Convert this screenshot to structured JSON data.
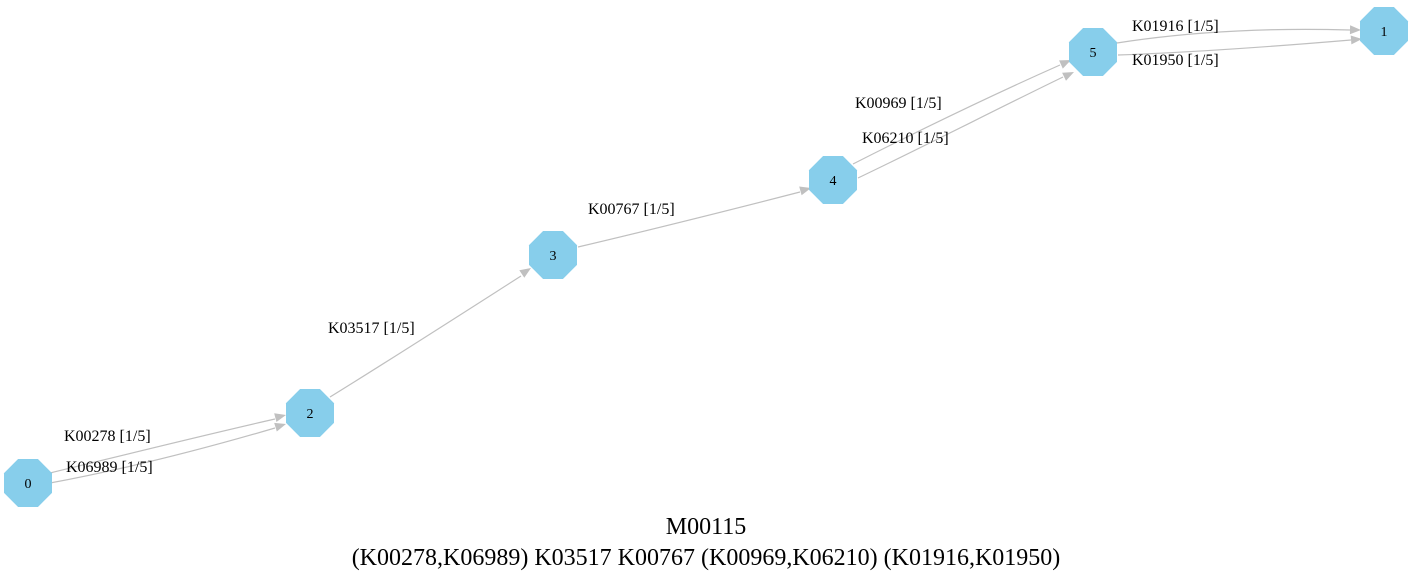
{
  "graph": {
    "nodes": [
      {
        "id": "0",
        "label": "0"
      },
      {
        "id": "1",
        "label": "1"
      },
      {
        "id": "2",
        "label": "2"
      },
      {
        "id": "3",
        "label": "3"
      },
      {
        "id": "4",
        "label": "4"
      },
      {
        "id": "5",
        "label": "5"
      }
    ],
    "edges": [
      {
        "from": "0",
        "to": "2",
        "label": "K00278 [1/5]"
      },
      {
        "from": "0",
        "to": "2",
        "label": "K06989 [1/5]"
      },
      {
        "from": "2",
        "to": "3",
        "label": "K03517 [1/5]"
      },
      {
        "from": "3",
        "to": "4",
        "label": "K00767 [1/5]"
      },
      {
        "from": "4",
        "to": "5",
        "label": "K00969 [1/5]"
      },
      {
        "from": "4",
        "to": "5",
        "label": "K06210 [1/5]"
      },
      {
        "from": "5",
        "to": "1",
        "label": "K01916 [1/5]"
      },
      {
        "from": "5",
        "to": "1",
        "label": "K01950 [1/5]"
      }
    ],
    "colors": {
      "node_fill": "#87ceeb",
      "edge": "#c0c0c0",
      "text": "#000000"
    }
  },
  "caption": {
    "title": "M00115",
    "formula": "(K00278,K06989) K03517 K00767 (K00969,K06210) (K01916,K01950)"
  }
}
